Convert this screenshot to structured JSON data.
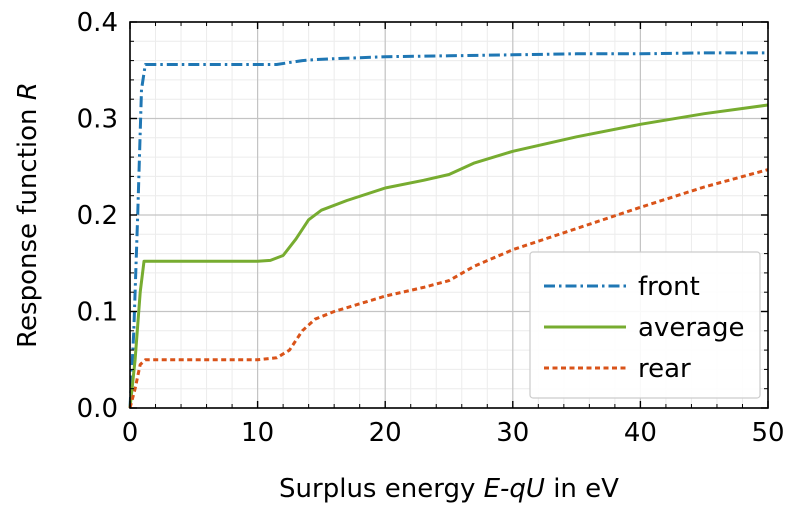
{
  "chart_data": {
    "type": "line",
    "xlabel_parts": [
      "Surplus energy ",
      "E-qU",
      " in eV"
    ],
    "ylabel_parts": [
      "Response function ",
      "R"
    ],
    "xlim": [
      0,
      50
    ],
    "ylim": [
      0,
      0.4
    ],
    "x_ticks": [
      0,
      10,
      20,
      30,
      40,
      50
    ],
    "x_tick_labels": [
      "0",
      "10",
      "20",
      "30",
      "40",
      "50"
    ],
    "y_ticks": [
      0,
      0.1,
      0.2,
      0.3,
      0.4
    ],
    "y_tick_labels": [
      "0.0",
      "0.1",
      "0.2",
      "0.3",
      "0.4"
    ],
    "grid": true,
    "legend_position": "bottom-right",
    "series": [
      {
        "name": "front",
        "color": "#1f77b4",
        "style": "dashdot",
        "x": [
          0,
          0.3,
          0.6,
          0.9,
          1.2,
          5,
          10,
          11.5,
          12.5,
          13.5,
          14.5,
          16,
          20,
          25,
          30,
          35,
          40,
          45,
          50
        ],
        "y": [
          0,
          0.08,
          0.2,
          0.33,
          0.356,
          0.356,
          0.356,
          0.356,
          0.358,
          0.36,
          0.361,
          0.362,
          0.364,
          0.365,
          0.366,
          0.367,
          0.367,
          0.368,
          0.368
        ]
      },
      {
        "name": "average",
        "color": "#77ac30",
        "style": "solid",
        "x": [
          0,
          0.4,
          0.8,
          1.1,
          5,
          10,
          11,
          12,
          13,
          14,
          15,
          17,
          20,
          23,
          25,
          27,
          30,
          35,
          40,
          45,
          50
        ],
        "y": [
          0,
          0.05,
          0.12,
          0.152,
          0.152,
          0.152,
          0.153,
          0.158,
          0.175,
          0.195,
          0.205,
          0.215,
          0.228,
          0.236,
          0.242,
          0.254,
          0.266,
          0.281,
          0.294,
          0.305,
          0.314
        ]
      },
      {
        "name": "rear",
        "color": "#d95319",
        "style": "dotted",
        "x": [
          0,
          0.4,
          0.8,
          1.2,
          5,
          10,
          11.5,
          12.5,
          13.5,
          14.5,
          16,
          20,
          23,
          25,
          27,
          30,
          35,
          40,
          45,
          50
        ],
        "y": [
          0,
          0.02,
          0.045,
          0.05,
          0.05,
          0.05,
          0.052,
          0.06,
          0.08,
          0.092,
          0.1,
          0.116,
          0.125,
          0.132,
          0.147,
          0.164,
          0.186,
          0.208,
          0.229,
          0.247
        ]
      }
    ]
  }
}
